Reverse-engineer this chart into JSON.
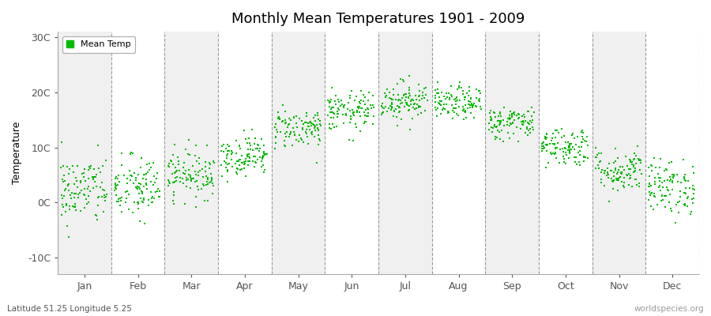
{
  "title": "Monthly Mean Temperatures 1901 - 2009",
  "ylabel": "Temperature",
  "ytick_labels": [
    "-10C",
    "0C",
    "10C",
    "20C",
    "30C"
  ],
  "ytick_values": [
    -10,
    0,
    10,
    20,
    30
  ],
  "ylim": [
    -13,
    31
  ],
  "months": [
    "Jan",
    "Feb",
    "Mar",
    "Apr",
    "May",
    "Jun",
    "Jul",
    "Aug",
    "Sep",
    "Oct",
    "Nov",
    "Dec"
  ],
  "month_means": [
    2.2,
    2.5,
    5.2,
    8.5,
    13.5,
    16.5,
    18.5,
    18.0,
    14.5,
    10.2,
    5.8,
    2.8
  ],
  "month_stds": [
    3.2,
    3.0,
    2.2,
    1.8,
    1.8,
    1.8,
    1.8,
    1.5,
    1.5,
    1.8,
    2.0,
    2.5
  ],
  "n_years": 109,
  "dot_color": "#00bb00",
  "dot_size": 3,
  "bg_color_odd": "#f0f0f0",
  "bg_color_even": "#ffffff",
  "fig_bg_color": "#ffffff",
  "legend_label": "Mean Temp",
  "footer_left": "Latitude 51.25 Longitude 5.25",
  "footer_right": "worldspecies.org",
  "seed": 42,
  "dashed_line_color": "#999999",
  "spine_color": "#aaaaaa"
}
